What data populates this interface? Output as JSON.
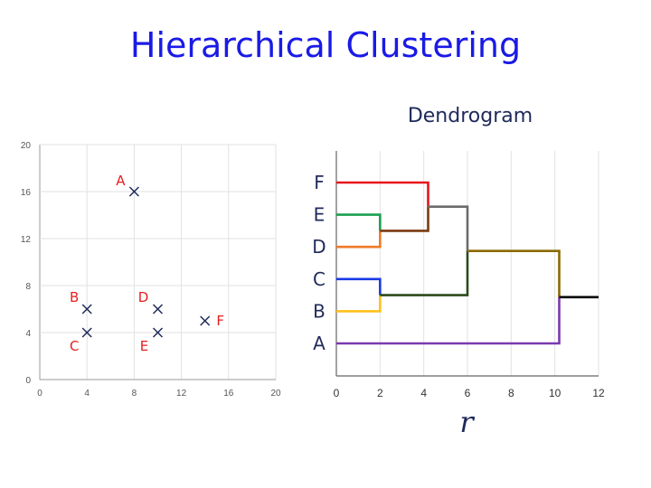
{
  "title": "Hierarchical Clustering",
  "dendrogram_title": "Dendrogram",
  "dendrogram_xlabel": "r",
  "colors": {
    "title": "#1a1ae6",
    "point_marker": "#1f2a5a",
    "point_label": "#e62020"
  },
  "chart_data": [
    {
      "type": "scatter",
      "xlim": [
        0,
        20
      ],
      "ylim": [
        0,
        20
      ],
      "xticks": [
        0,
        4,
        8,
        12,
        16,
        20
      ],
      "yticks": [
        0,
        4,
        8,
        12,
        16,
        20
      ],
      "grid": true,
      "marker": "x",
      "points": [
        {
          "label": "A",
          "x": 8,
          "y": 16
        },
        {
          "label": "B",
          "x": 4,
          "y": 6
        },
        {
          "label": "C",
          "x": 4,
          "y": 4
        },
        {
          "label": "D",
          "x": 10,
          "y": 6
        },
        {
          "label": "E",
          "x": 10,
          "y": 4
        },
        {
          "label": "F",
          "x": 14,
          "y": 5
        }
      ]
    },
    {
      "type": "dendrogram",
      "xlim": [
        0,
        12
      ],
      "xticks": [
        0,
        2,
        4,
        6,
        8,
        10,
        12
      ],
      "grid": true,
      "leaves": [
        "F",
        "E",
        "D",
        "C",
        "B",
        "A"
      ],
      "merges": [
        {
          "join": [
            "E",
            "D"
          ],
          "height": 2,
          "color": "#7a3a10"
        },
        {
          "join": [
            "C",
            "B"
          ],
          "height": 2,
          "color": "#2a4a1a"
        },
        {
          "join": [
            "F",
            "ED"
          ],
          "height": 4.2,
          "color": "#6b6b6b"
        },
        {
          "join": [
            "FED",
            "CB"
          ],
          "height": 6,
          "color": "#8a6a00"
        },
        {
          "join": [
            "FEDCB",
            "A"
          ],
          "height": 10.2,
          "color": "#000000"
        }
      ],
      "branch_colors": {
        "F": "#e8141c",
        "E": "#1aa050",
        "D": "#f07a28",
        "C": "#1a3ae6",
        "B": "#ffc018",
        "A": "#7a3ab0",
        "ED": "#7a3a10",
        "CB": "#2a4a1a",
        "FED": "#6b6b6b",
        "FEDCB": "#8a6a00"
      }
    }
  ]
}
